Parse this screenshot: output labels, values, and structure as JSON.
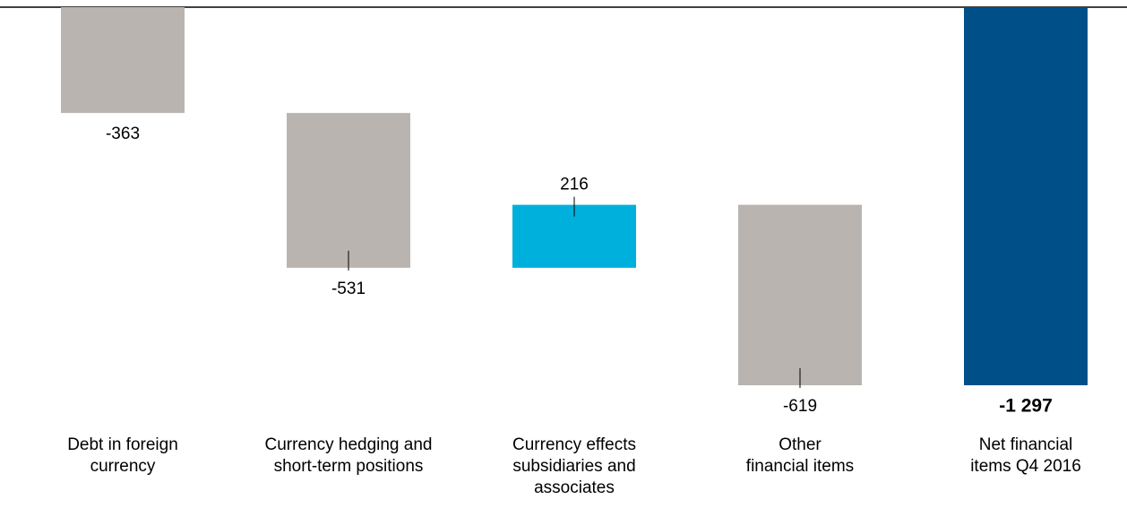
{
  "chart_data": {
    "type": "waterfall",
    "categories": [
      [
        "Debt in foreign",
        "currency"
      ],
      [
        "Currency hedging and",
        "short-term positions"
      ],
      [
        "Currency effects",
        "subsidiaries and",
        "associates"
      ],
      [
        "Other",
        "financial items"
      ],
      [
        "Net financial",
        "items Q4 2016"
      ]
    ],
    "values": [
      -363,
      -531,
      216,
      -619,
      -1297
    ],
    "value_labels": [
      "-363",
      "-531",
      "216",
      "-619",
      "-1 297"
    ],
    "colors": [
      "#bab4b0",
      "#bab4b0",
      "#00b0dc",
      "#bab4b0",
      "#004f88"
    ]
  }
}
